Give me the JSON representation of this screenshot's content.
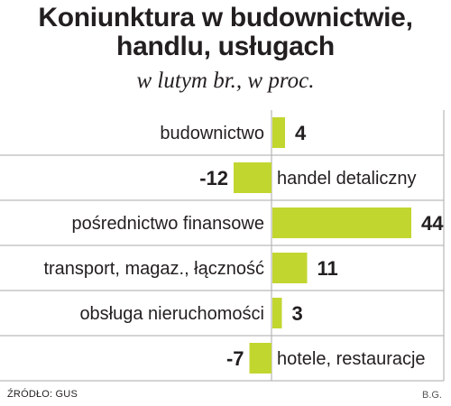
{
  "chart_data": {
    "type": "bar",
    "orientation": "horizontal",
    "title_lines": [
      "Koniunktura w budownictwie,",
      "handlu, usługach"
    ],
    "subtitle": "w lutym br., w proc.",
    "categories": [
      "budownictwo",
      "handel detaliczny",
      "pośrednictwo finansowe",
      "transport, magaz., łączność",
      "obsługa nieruchomości",
      "hotele, restauracje"
    ],
    "values": [
      4,
      -12,
      44,
      11,
      3,
      -7
    ],
    "value_labels": [
      "4",
      "-12",
      "44",
      "11",
      "3",
      "-7"
    ],
    "grid": true,
    "bar_color": "#c2d630",
    "grid_color": "#aaaaaa"
  },
  "footer": {
    "source": "ŹRÓDŁO: GUS",
    "author": "B.G."
  }
}
